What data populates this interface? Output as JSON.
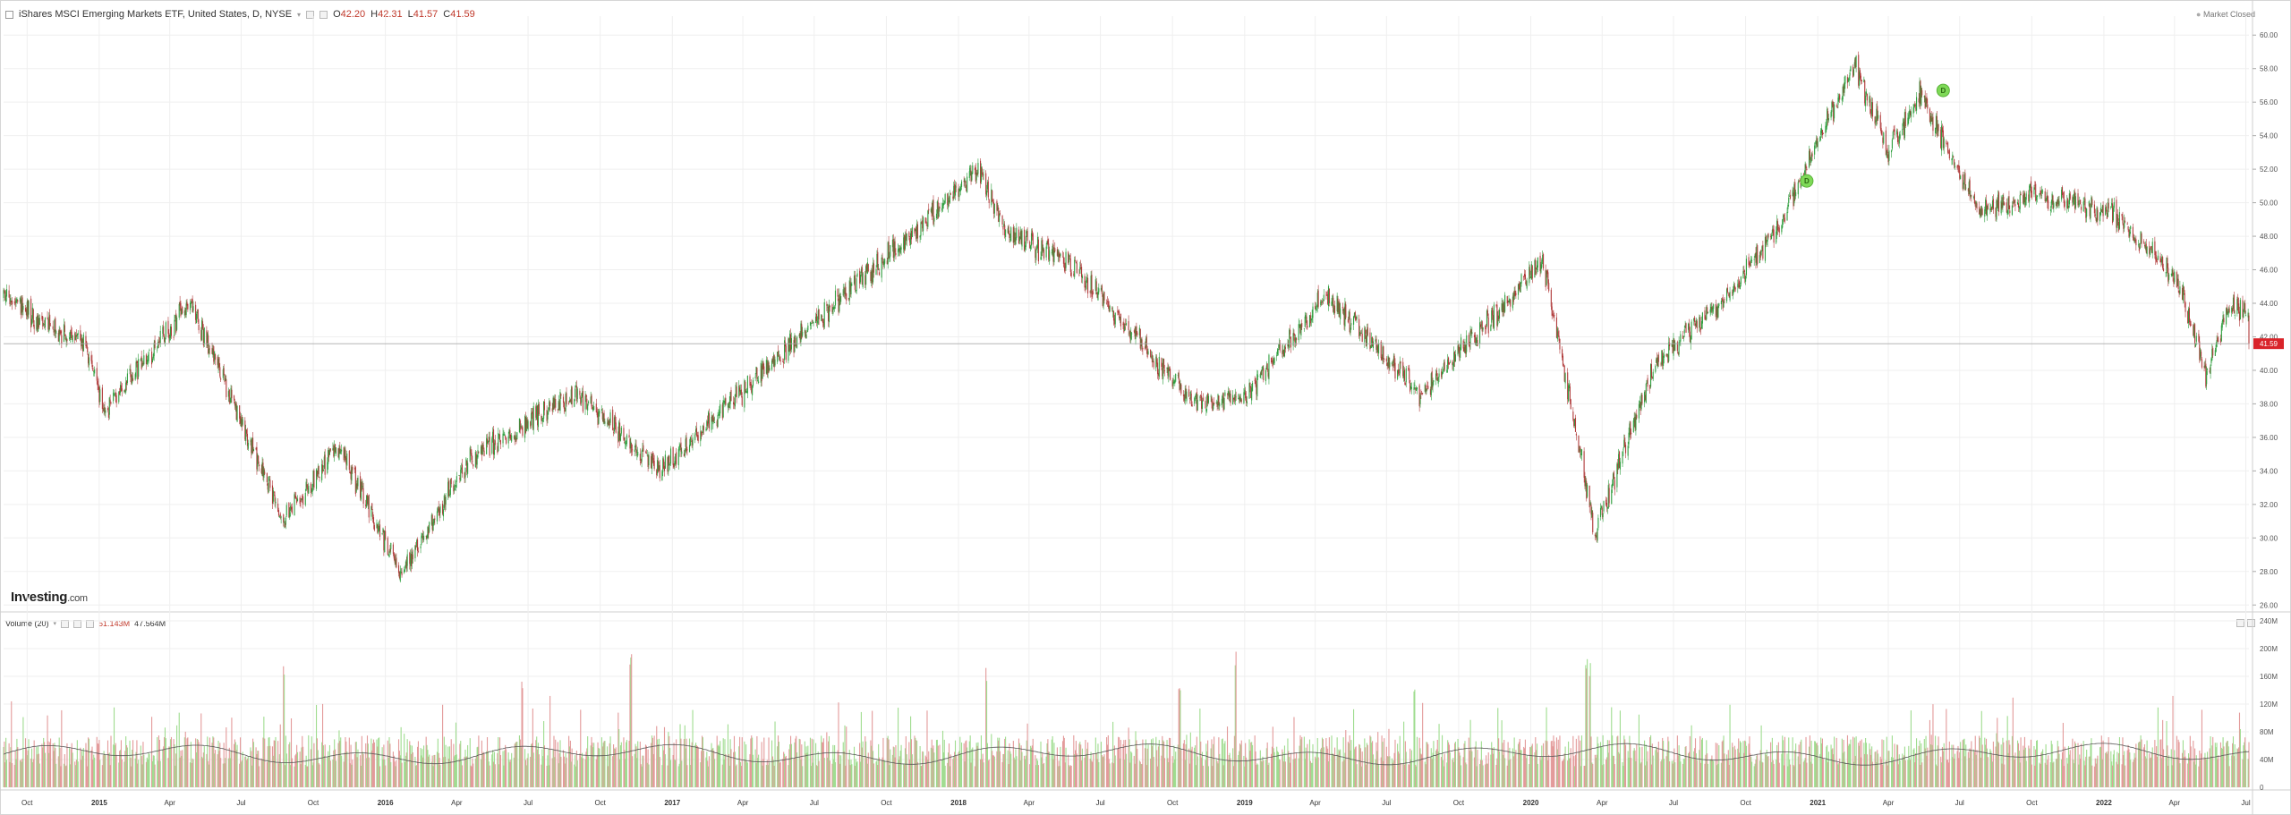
{
  "header": {
    "title": "iShares MSCI Emerging Markets ETF, United States, D, NYSE",
    "open_label": "O",
    "open": "42.20",
    "high_label": "H",
    "high": "42.31",
    "low_label": "L",
    "low": "41.57",
    "close_label": "C",
    "close": "41.59",
    "market_status": "Market Closed",
    "last_price_tag": "41.59"
  },
  "volume_header": {
    "label": "Volume (20)",
    "value_a": "51.143M",
    "value_b": "47.564M"
  },
  "logo": {
    "bold": "Investing",
    "light": ".com"
  },
  "colors": {
    "up": "#2e9e3e",
    "down": "#b03a3a",
    "vol_up": "#9fdc8f",
    "vol_down": "#e39a9a",
    "grid": "#efefef",
    "price_tag": "#d9242a",
    "marker": "#7ed957"
  },
  "chart_data": [
    {
      "type": "candlestick",
      "title": "iShares MSCI Emerging Markets ETF, United States, D, NYSE",
      "y_ticks": [
        "60.00",
        "58.00",
        "56.00",
        "54.00",
        "52.00",
        "50.00",
        "48.00",
        "46.00",
        "44.00",
        "42.00",
        "40.00",
        "38.00",
        "36.00",
        "34.00",
        "32.00",
        "30.00",
        "28.00",
        "26.00"
      ],
      "ylim": [
        25.8,
        60.6
      ],
      "x_ticks": [
        "Oct",
        "2015",
        "Apr",
        "Jul",
        "Oct",
        "2016",
        "Apr",
        "Jul",
        "Oct",
        "2017",
        "Apr",
        "Jul",
        "Oct",
        "2018",
        "Apr",
        "Jul",
        "Oct",
        "2019",
        "Apr",
        "Jul",
        "Oct",
        "2020",
        "Apr",
        "Jul",
        "Oct",
        "2021",
        "Apr",
        "Jul",
        "Oct",
        "2022",
        "Apr",
        "Jul"
      ],
      "x_range": [
        "2014-09",
        "2022-07"
      ],
      "price_path_dates": [
        "2014-09-01",
        "2014-12-15",
        "2015-01-06",
        "2015-04-27",
        "2015-08-24",
        "2015-11-01",
        "2016-01-21",
        "2016-04-20",
        "2016-09-01",
        "2016-12-15",
        "2017-06-01",
        "2018-01-26",
        "2018-03-01",
        "2018-06-01",
        "2018-10-30",
        "2019-01-03",
        "2019-04-15",
        "2019-08-15",
        "2019-10-01",
        "2020-01-17",
        "2020-03-23",
        "2020-06-08",
        "2020-09-01",
        "2020-11-10",
        "2021-02-17",
        "2021-04-01",
        "2021-05-10",
        "2021-07-27",
        "2021-10-01",
        "2022-01-12",
        "2022-03-15",
        "2022-04-11",
        "2022-05-12",
        "2022-06-07"
      ],
      "price_path_values": [
        44.3,
        41.5,
        37.5,
        44.0,
        31.0,
        35.5,
        27.8,
        35.0,
        38.5,
        34.0,
        41.5,
        51.9,
        48.5,
        46.0,
        38.0,
        38.5,
        44.5,
        38.5,
        41.0,
        46.5,
        30.3,
        40.5,
        44.0,
        48.5,
        58.3,
        53.0,
        56.5,
        49.5,
        50.5,
        49.5,
        46.5,
        44.5,
        39.5,
        43.5
      ],
      "last_value": 41.59,
      "dividend_markers": [
        {
          "date": "2020-12-18",
          "value": 51.3,
          "label": "D"
        },
        {
          "date": "2021-06-10",
          "value": 56.7,
          "label": "D"
        }
      ]
    },
    {
      "type": "bar",
      "title": "Volume (20)",
      "y_ticks": [
        "240M",
        "200M",
        "160M",
        "120M",
        "80M",
        "40M",
        "0"
      ],
      "ylim": [
        0,
        240
      ],
      "unit": "M",
      "avg_volume": 47.564,
      "last_volume": 51.143,
      "spikes": [
        {
          "date": "2015-08-24",
          "value": 190
        },
        {
          "date": "2016-06-24",
          "value": 160
        },
        {
          "date": "2016-11-09",
          "value": 205
        },
        {
          "date": "2018-02-05",
          "value": 175
        },
        {
          "date": "2018-10-10",
          "value": 155
        },
        {
          "date": "2018-12-21",
          "value": 205
        },
        {
          "date": "2019-08-05",
          "value": 150
        },
        {
          "date": "2020-03-12",
          "value": 200
        },
        {
          "date": "2020-03-16",
          "value": 180
        }
      ]
    }
  ]
}
